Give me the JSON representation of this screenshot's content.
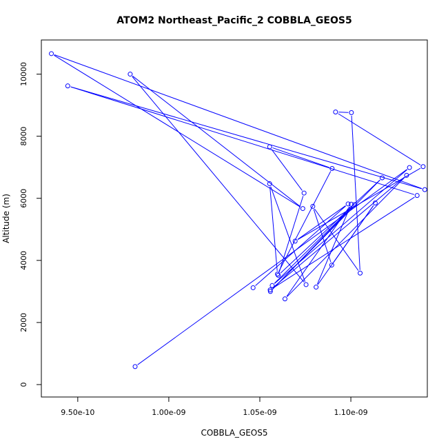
{
  "chart_data": {
    "type": "line",
    "title": "ATOM2 Northeast_Pacific_2 COBBLA_GEOS5",
    "xlabel": "COBBLA_GEOS5",
    "ylabel": "Altitude (m)",
    "xlim": [
      9.3e-10,
      1.142e-09
    ],
    "ylim": [
      -400,
      11100
    ],
    "x_ticks": [
      9.5e-10,
      1e-09,
      1.05e-09,
      1.1e-09
    ],
    "x_tick_labels": [
      "9.50e-10",
      "1.00e-09",
      "1.05e-09",
      "1.10e-09"
    ],
    "y_ticks": [
      0,
      2000,
      4000,
      6000,
      8000,
      10000
    ],
    "y_tick_labels": [
      "0",
      "2000",
      "4000",
      "6000",
      "8000",
      "10000"
    ],
    "grid": false,
    "color": "#0000ff",
    "series": [
      {
        "points": [
          [
            9.815e-10,
            580
          ],
          [
            1.1322e-09,
            6990
          ],
          [
            1.0568e-09,
            3190
          ],
          [
            1.1021e-09,
            5800
          ],
          [
            1.0558e-09,
            3000
          ],
          [
            1.1172e-09,
            6660
          ],
          [
            1.0601e-09,
            3520
          ],
          [
            1.0743e-09,
            6170
          ],
          [
            1.0554e-09,
            7660
          ],
          [
            1.0897e-09,
            6960
          ],
          [
            1.0597e-09,
            3560
          ],
          [
            1.0554e-09,
            6470
          ],
          [
            1.0754e-09,
            3220
          ],
          [
            9.788e-10,
            10000
          ],
          [
            1.0736e-09,
            5670
          ],
          [
            9.355e-10,
            10660
          ],
          [
            1.1406e-09,
            6280
          ],
          [
            9.445e-10,
            9620
          ],
          [
            1.1364e-09,
            6090
          ],
          [
            1.0557e-09,
            3050
          ],
          [
            1.1306e-09,
            6740
          ],
          [
            1.0638e-09,
            2760
          ],
          [
            1.1002e-09,
            5810
          ],
          [
            1.0809e-09,
            3140
          ],
          [
            1.1134e-09,
            5850
          ],
          [
            1.0895e-09,
            3850
          ],
          [
            1.0791e-09,
            5740
          ],
          [
            1.1051e-09,
            3590
          ],
          [
            1.1003e-09,
            8760
          ],
          [
            1.0916e-09,
            8780
          ],
          [
            1.1397e-09,
            7020
          ],
          [
            1.0694e-09,
            4620
          ],
          [
            1.0985e-09,
            5820
          ],
          [
            1.0463e-09,
            3120
          ]
        ]
      }
    ]
  }
}
